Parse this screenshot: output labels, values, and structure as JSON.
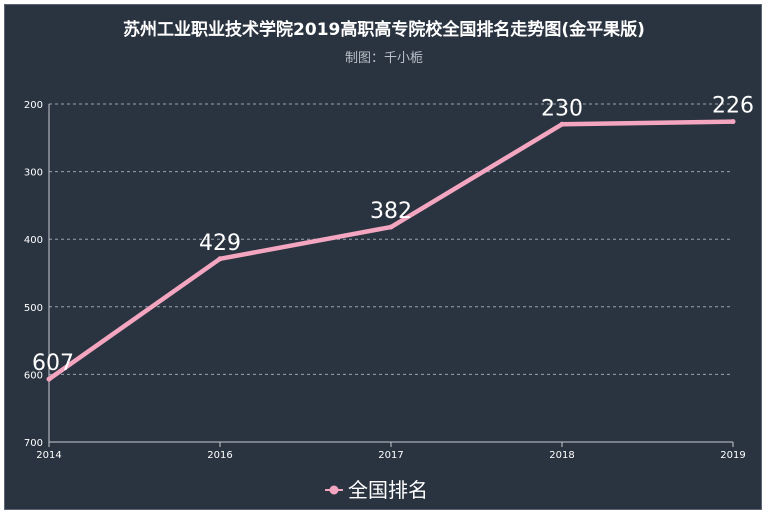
{
  "chart_data": {
    "type": "line",
    "title": "苏州工业职业技术学院2019高职高专院校全国排名走势图(金平果版)",
    "subtitle": "制图：千小栀",
    "x": [
      "2014",
      "2016",
      "2017",
      "2018",
      "2019"
    ],
    "series": [
      {
        "name": "全国排名",
        "values": [
          607,
          429,
          382,
          230,
          226
        ]
      }
    ],
    "y_ticks": [
      "200",
      "300",
      "400",
      "500",
      "600",
      "700"
    ],
    "ylim": [
      200,
      700
    ],
    "y_inverted": true,
    "grid": "horizontal-dashed",
    "legend_position": "bottom-center",
    "colors": {
      "background": "#2a3340",
      "line": "#f4a6c0",
      "grid": "#9aa3ad",
      "text": "#ffffff"
    }
  }
}
